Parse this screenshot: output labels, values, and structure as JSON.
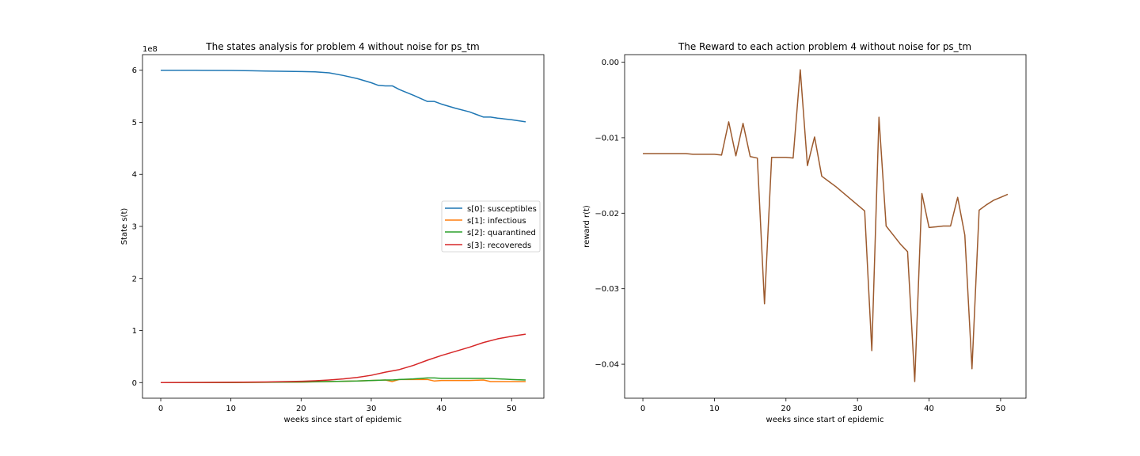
{
  "chart_data": [
    {
      "type": "line",
      "title": "The states analysis for problem 4 without noise for ps_tm",
      "xlabel": "weeks since start of epidemic",
      "ylabel": "State s(t)",
      "y_offset_label": "1e8",
      "xlim": [
        -2.6,
        54.6
      ],
      "ylim": [
        -0.3,
        6.3
      ],
      "xticks": [
        0,
        10,
        20,
        30,
        40,
        50
      ],
      "xtick_labels": [
        "0",
        "10",
        "20",
        "30",
        "40",
        "50"
      ],
      "yticks": [
        0,
        1,
        2,
        3,
        4,
        5,
        6
      ],
      "ytick_labels": [
        "0",
        "1",
        "2",
        "3",
        "4",
        "5",
        "6"
      ],
      "grid": false,
      "legend_position": "center-right",
      "series": [
        {
          "name": "s[0]: susceptibles",
          "color": "#1f77b4",
          "x": [
            0,
            5,
            10,
            13,
            15,
            17,
            20,
            22,
            24,
            26,
            28,
            30,
            31,
            32,
            33,
            34,
            36,
            38,
            39,
            40,
            42,
            44,
            45,
            46,
            47,
            48,
            50,
            52
          ],
          "y": [
            6.0,
            5.999,
            5.995,
            5.99,
            5.985,
            5.98,
            5.975,
            5.97,
            5.95,
            5.9,
            5.84,
            5.76,
            5.71,
            5.7,
            5.7,
            5.63,
            5.52,
            5.4,
            5.4,
            5.35,
            5.27,
            5.2,
            5.15,
            5.1,
            5.1,
            5.08,
            5.05,
            5.01
          ]
        },
        {
          "name": "s[1]: infectious",
          "color": "#ff7f0e",
          "x": [
            0,
            10,
            20,
            24,
            28,
            30,
            32,
            33,
            34,
            36,
            38,
            39,
            40,
            42,
            44,
            46,
            47,
            50,
            52
          ],
          "y": [
            0.0,
            0.002,
            0.01,
            0.02,
            0.03,
            0.04,
            0.05,
            0.02,
            0.06,
            0.06,
            0.06,
            0.03,
            0.04,
            0.04,
            0.04,
            0.05,
            0.02,
            0.02,
            0.02
          ]
        },
        {
          "name": "s[2]: quarantined",
          "color": "#2ca02c",
          "x": [
            0,
            10,
            20,
            24,
            28,
            30,
            32,
            33,
            34,
            36,
            38,
            39,
            40,
            42,
            44,
            46,
            47,
            50,
            52
          ],
          "y": [
            0.0,
            0.003,
            0.012,
            0.022,
            0.03,
            0.04,
            0.05,
            0.05,
            0.06,
            0.07,
            0.09,
            0.09,
            0.08,
            0.08,
            0.08,
            0.08,
            0.08,
            0.06,
            0.05
          ]
        },
        {
          "name": "s[3]: recovereds",
          "color": "#d62728",
          "x": [
            0,
            5,
            10,
            15,
            20,
            22,
            24,
            26,
            28,
            30,
            32,
            34,
            36,
            38,
            40,
            42,
            44,
            46,
            48,
            50,
            52
          ],
          "y": [
            0.0,
            0.002,
            0.006,
            0.012,
            0.025,
            0.035,
            0.05,
            0.07,
            0.1,
            0.14,
            0.2,
            0.25,
            0.33,
            0.43,
            0.52,
            0.6,
            0.68,
            0.77,
            0.84,
            0.89,
            0.93
          ]
        }
      ]
    },
    {
      "type": "line",
      "title": "The Reward to each action problem 4 without noise for ps_tm",
      "xlabel": "weeks since start of epidemic",
      "ylabel": "reward r(t)",
      "xlim": [
        -2.55,
        53.55
      ],
      "ylim": [
        -0.0445,
        0.001
      ],
      "xticks": [
        0,
        10,
        20,
        30,
        40,
        50
      ],
      "xtick_labels": [
        "0",
        "10",
        "20",
        "30",
        "40",
        "50"
      ],
      "yticks": [
        0.0,
        -0.01,
        -0.02,
        -0.03,
        -0.04
      ],
      "ytick_labels": [
        "0.00",
        "−0.01",
        "−0.02",
        "−0.03",
        "−0.04"
      ],
      "grid": false,
      "series": [
        {
          "color": "#9c5a2e",
          "x": [
            0,
            1,
            2,
            3,
            4,
            5,
            6,
            7,
            8,
            9,
            10,
            11,
            12,
            13,
            14,
            15,
            16,
            17,
            18,
            19,
            20,
            21,
            22,
            23,
            24,
            25,
            26,
            27,
            28,
            29,
            30,
            31,
            32,
            33,
            34,
            35,
            36,
            37,
            38,
            39,
            40,
            41,
            42,
            43,
            44,
            45,
            46,
            47,
            48,
            49,
            50,
            51
          ],
          "y": [
            -0.0121,
            -0.0121,
            -0.0121,
            -0.0121,
            -0.0121,
            -0.0121,
            -0.0121,
            -0.0122,
            -0.0122,
            -0.0122,
            -0.0122,
            -0.0123,
            -0.0079,
            -0.0124,
            -0.0081,
            -0.0125,
            -0.0127,
            -0.032,
            -0.0126,
            -0.0126,
            -0.0126,
            -0.0127,
            -0.001,
            -0.0137,
            -0.0099,
            -0.0151,
            -0.0158,
            -0.0165,
            -0.0173,
            -0.0181,
            -0.0189,
            -0.0197,
            -0.0382,
            -0.0073,
            -0.0217,
            -0.0229,
            -0.0241,
            -0.0251,
            -0.0423,
            -0.0174,
            -0.0219,
            -0.0218,
            -0.0217,
            -0.0217,
            -0.0179,
            -0.0229,
            -0.0406,
            -0.0196,
            -0.0189,
            -0.0183,
            -0.0179,
            -0.0175
          ]
        }
      ]
    }
  ]
}
